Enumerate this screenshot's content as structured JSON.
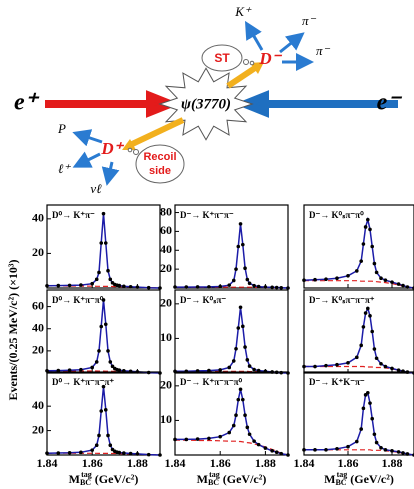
{
  "diagram": {
    "beam_left": "e⁺",
    "beam_right": "e⁻",
    "resonance": "ψ(3770)",
    "tag": {
      "label": "D⁻",
      "cloud": "ST",
      "products": [
        "K⁺",
        "π⁻",
        "π⁻"
      ]
    },
    "signal": {
      "label": "D⁺",
      "cloud": [
        "Recoil",
        "side"
      ],
      "products": [
        "P",
        "ℓ⁺",
        "νℓ"
      ]
    }
  },
  "axes": {
    "y_label": "Events/(0.25 MeV/c²) (×10³)",
    "x_label": {
      "base": "M",
      "sub": "BC",
      "sup": "tag",
      "unit": " (GeV/c²)"
    }
  },
  "chart_data": [
    {
      "type": "line",
      "title": "D⁰→ K⁺π⁻",
      "color": "#1c1ca8",
      "background_color": "#e02020",
      "x": [
        1.84,
        1.845,
        1.85,
        1.855,
        1.86,
        1.862,
        1.863,
        1.864,
        1.865,
        1.866,
        1.867,
        1.868,
        1.869,
        1.87,
        1.871,
        1.872,
        1.874,
        1.877,
        1.88,
        1.885,
        1.89
      ],
      "values": [
        1.3,
        1.4,
        1.5,
        1.7,
        2.5,
        5,
        9,
        26,
        43,
        26,
        10,
        5,
        3,
        2,
        1.6,
        1.4,
        1,
        0.7,
        0.5,
        0.2,
        0
      ],
      "background": [
        1.2,
        1.2,
        1.15,
        1.1,
        1.05,
        1,
        1,
        1,
        0.95,
        0.95,
        0.9,
        0.9,
        0.85,
        0.8,
        0.8,
        0.75,
        0.7,
        0.6,
        0.45,
        0.15,
        0
      ],
      "xlim": [
        1.84,
        1.89
      ],
      "xticks": [
        1.84,
        1.86,
        1.88
      ],
      "xtick_labels": false,
      "ylim": [
        0,
        48
      ],
      "yticks": [
        20,
        40
      ]
    },
    {
      "type": "line",
      "title": "D⁻→ K⁺π⁻π⁻",
      "color": "#1c1ca8",
      "background_color": "#e02020",
      "x": [
        1.84,
        1.845,
        1.85,
        1.855,
        1.86,
        1.864,
        1.866,
        1.867,
        1.868,
        1.869,
        1.87,
        1.871,
        1.872,
        1.873,
        1.875,
        1.877,
        1.88,
        1.883,
        1.885,
        1.887,
        1.89
      ],
      "values": [
        1,
        1,
        1.1,
        1.2,
        1.6,
        3,
        8,
        20,
        44,
        68,
        46,
        21,
        9,
        5,
        2.5,
        1.5,
        1,
        0.7,
        0.5,
        0.2,
        0
      ],
      "background": [
        1,
        1,
        1,
        1,
        1,
        0.9,
        0.9,
        0.9,
        0.9,
        0.9,
        0.9,
        0.8,
        0.8,
        0.8,
        0.8,
        0.7,
        0.6,
        0.4,
        0.3,
        0.15,
        0
      ],
      "xlim": [
        1.84,
        1.89
      ],
      "xticks": [
        1.84,
        1.86,
        1.88
      ],
      "xtick_labels": false,
      "ylim": [
        0,
        88
      ],
      "yticks": [
        20,
        40,
        60,
        80
      ]
    },
    {
      "type": "line",
      "title": "D⁻→ K⁰ₛπ⁻π⁰",
      "color": "#1c1ca8",
      "background_color": "#e02020",
      "x": [
        1.84,
        1.845,
        1.85,
        1.855,
        1.86,
        1.864,
        1.866,
        1.867,
        1.868,
        1.869,
        1.87,
        1.871,
        1.872,
        1.873,
        1.875,
        1.877,
        1.88,
        1.883,
        1.885,
        1.887,
        1.89
      ],
      "values": [
        1.6,
        1.7,
        1.8,
        2,
        2.5,
        3.5,
        5.5,
        9,
        12.5,
        14,
        12,
        8.5,
        5,
        3.2,
        2,
        1.6,
        1.2,
        0.8,
        0.5,
        0.2,
        0
      ],
      "background": [
        1.5,
        1.5,
        1.5,
        1.5,
        1.5,
        1.5,
        1.4,
        1.4,
        1.4,
        1.4,
        1.4,
        1.4,
        1.3,
        1.3,
        1.2,
        1.1,
        0.9,
        0.6,
        0.4,
        0.2,
        0
      ],
      "xlim": [
        1.84,
        1.89
      ],
      "xticks": [
        1.84,
        1.86,
        1.88
      ],
      "xtick_labels": false,
      "ylim": [
        0,
        17
      ]
    },
    {
      "type": "line",
      "title": "D⁰→ K⁺π⁻π⁰",
      "color": "#1c1ca8",
      "background_color": "#e02020",
      "x": [
        1.84,
        1.845,
        1.85,
        1.855,
        1.86,
        1.862,
        1.863,
        1.864,
        1.865,
        1.866,
        1.867,
        1.868,
        1.869,
        1.87,
        1.871,
        1.872,
        1.874,
        1.877,
        1.88,
        1.885,
        1.89
      ],
      "values": [
        2,
        2.2,
        2.5,
        3,
        5,
        10,
        20,
        42,
        66,
        44,
        20,
        10,
        6,
        4,
        3,
        2.5,
        2,
        1.5,
        1.1,
        0.4,
        0
      ],
      "background": [
        2,
        2,
        1.9,
        1.9,
        1.8,
        1.8,
        1.7,
        1.7,
        1.7,
        1.6,
        1.6,
        1.6,
        1.5,
        1.5,
        1.5,
        1.4,
        1.3,
        1.1,
        0.9,
        0.4,
        0
      ],
      "xlim": [
        1.84,
        1.89
      ],
      "xticks": [
        1.84,
        1.86,
        1.88
      ],
      "xtick_labels": false,
      "ylim": [
        0,
        75
      ],
      "yticks": [
        20,
        40,
        60
      ]
    },
    {
      "type": "line",
      "title": "D⁻→ K⁰ₛπ⁻",
      "color": "#1c1ca8",
      "background_color": "#e02020",
      "x": [
        1.84,
        1.845,
        1.85,
        1.855,
        1.86,
        1.864,
        1.866,
        1.867,
        1.868,
        1.869,
        1.87,
        1.871,
        1.872,
        1.873,
        1.875,
        1.877,
        1.88,
        1.883,
        1.885,
        1.887,
        1.89
      ],
      "values": [
        0.5,
        0.5,
        0.6,
        0.7,
        0.9,
        1.6,
        3.5,
        7,
        13,
        19,
        13.5,
        7.5,
        3.8,
        2,
        1,
        0.7,
        0.5,
        0.3,
        0.2,
        0.1,
        0
      ],
      "background": [
        0.5,
        0.5,
        0.5,
        0.5,
        0.5,
        0.5,
        0.5,
        0.5,
        0.45,
        0.45,
        0.45,
        0.45,
        0.45,
        0.4,
        0.4,
        0.4,
        0.35,
        0.25,
        0.2,
        0.1,
        0
      ],
      "xlim": [
        1.84,
        1.89
      ],
      "xticks": [
        1.84,
        1.86,
        1.88
      ],
      "xtick_labels": false,
      "ylim": [
        0,
        24
      ],
      "yticks": [
        10,
        20
      ]
    },
    {
      "type": "line",
      "title": "D⁻→ K⁰ₛπ⁻π⁻π⁺",
      "color": "#1c1ca8",
      "background_color": "#e02020",
      "x": [
        1.84,
        1.845,
        1.85,
        1.855,
        1.86,
        1.864,
        1.866,
        1.867,
        1.868,
        1.869,
        1.87,
        1.871,
        1.872,
        1.873,
        1.875,
        1.877,
        1.88,
        1.883,
        1.885,
        1.887,
        1.89
      ],
      "values": [
        0.7,
        0.7,
        0.8,
        0.9,
        1.1,
        1.7,
        3,
        5,
        6.5,
        7,
        6.2,
        4.5,
        2.6,
        1.6,
        1,
        0.7,
        0.5,
        0.3,
        0.2,
        0.1,
        0
      ],
      "background": [
        0.7,
        0.7,
        0.7,
        0.7,
        0.7,
        0.7,
        0.7,
        0.7,
        0.65,
        0.65,
        0.65,
        0.65,
        0.6,
        0.6,
        0.6,
        0.55,
        0.45,
        0.3,
        0.2,
        0.1,
        0
      ],
      "xlim": [
        1.84,
        1.89
      ],
      "xticks": [
        1.84,
        1.86,
        1.88
      ],
      "xtick_labels": false,
      "ylim": [
        0,
        9
      ]
    },
    {
      "type": "line",
      "title": "D⁰→ K⁺π⁻π⁻π⁺",
      "color": "#1c1ca8",
      "background_color": "#e02020",
      "x": [
        1.84,
        1.845,
        1.85,
        1.855,
        1.86,
        1.862,
        1.863,
        1.864,
        1.865,
        1.866,
        1.867,
        1.868,
        1.869,
        1.87,
        1.871,
        1.872,
        1.874,
        1.877,
        1.88,
        1.885,
        1.89
      ],
      "values": [
        1.5,
        1.6,
        1.8,
        2.2,
        4,
        8,
        16,
        36,
        56,
        37,
        16,
        8,
        4.5,
        3,
        2.3,
        2,
        1.6,
        1.2,
        0.9,
        0.3,
        0
      ],
      "background": [
        1.5,
        1.5,
        1.5,
        1.4,
        1.4,
        1.4,
        1.3,
        1.3,
        1.3,
        1.3,
        1.3,
        1.2,
        1.2,
        1.2,
        1.2,
        1.1,
        1,
        0.9,
        0.7,
        0.3,
        0
      ],
      "xlim": [
        1.84,
        1.89
      ],
      "xticks": [
        1.84,
        1.86,
        1.88
      ],
      "xtick_labels": true,
      "ylim": [
        0,
        68
      ],
      "yticks": [
        20,
        40
      ]
    },
    {
      "type": "line",
      "title": "D⁻→ K⁺π⁻π⁻π⁰",
      "color": "#1c1ca8",
      "background_color": "#e02020",
      "x": [
        1.84,
        1.845,
        1.85,
        1.855,
        1.86,
        1.864,
        1.866,
        1.867,
        1.868,
        1.869,
        1.87,
        1.871,
        1.872,
        1.873,
        1.875,
        1.877,
        1.88,
        1.883,
        1.885,
        1.887,
        1.89
      ],
      "values": [
        4.5,
        4.5,
        4.6,
        4.8,
        5.3,
        6.5,
        8.5,
        11.5,
        16,
        19,
        16,
        11.5,
        8,
        6,
        4,
        3,
        2,
        1.2,
        0.8,
        0.4,
        0
      ],
      "background": [
        4.3,
        4.3,
        4.2,
        4.2,
        4.1,
        4,
        4,
        4,
        3.9,
        3.9,
        3.8,
        3.7,
        3.6,
        3.5,
        3.2,
        2.9,
        2.3,
        1.6,
        1.1,
        0.5,
        0
      ],
      "xlim": [
        1.84,
        1.89
      ],
      "xticks": [
        1.84,
        1.86,
        1.88
      ],
      "xtick_labels": true,
      "ylim": [
        0,
        24
      ],
      "yticks": [
        10,
        20
      ]
    },
    {
      "type": "line",
      "title": "D⁻→ K⁺K⁻π⁻",
      "color": "#1c1ca8",
      "background_color": "#e02020",
      "x": [
        1.84,
        1.845,
        1.85,
        1.855,
        1.86,
        1.864,
        1.866,
        1.867,
        1.868,
        1.869,
        1.87,
        1.871,
        1.872,
        1.873,
        1.875,
        1.877,
        1.88,
        1.883,
        1.885,
        1.887,
        1.89
      ],
      "values": [
        0.5,
        0.5,
        0.5,
        0.6,
        0.8,
        1.3,
        2.5,
        4.5,
        5.8,
        6,
        5,
        3.5,
        2,
        1.2,
        0.7,
        0.5,
        0.4,
        0.3,
        0.2,
        0.1,
        0
      ],
      "background": [
        0.5,
        0.5,
        0.5,
        0.5,
        0.5,
        0.5,
        0.5,
        0.5,
        0.5,
        0.5,
        0.5,
        0.45,
        0.45,
        0.45,
        0.45,
        0.4,
        0.35,
        0.25,
        0.15,
        0.1,
        0
      ],
      "xlim": [
        1.84,
        1.89
      ],
      "xticks": [
        1.84,
        1.86,
        1.88
      ],
      "xtick_labels": true,
      "ylim": [
        0,
        8
      ]
    }
  ]
}
